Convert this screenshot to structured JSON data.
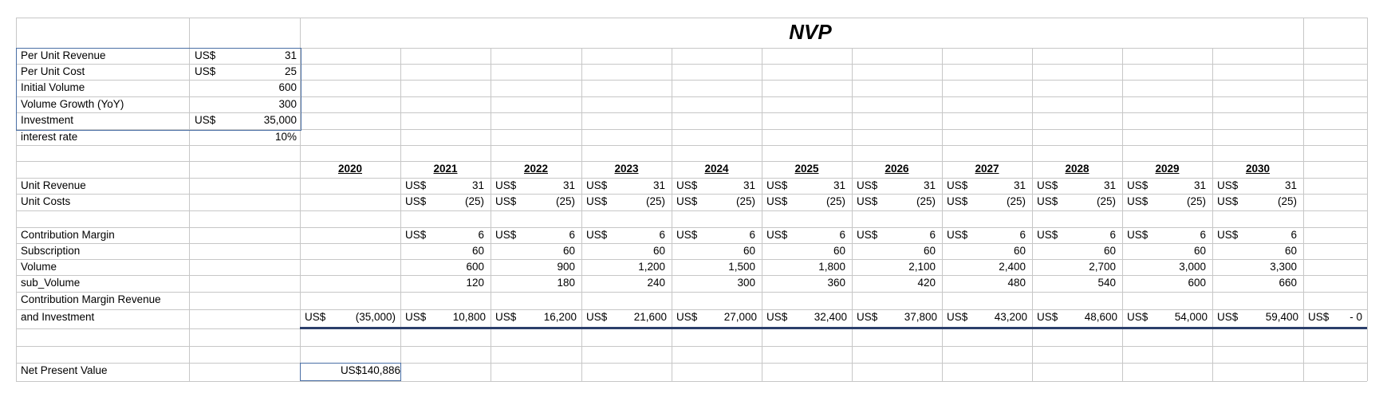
{
  "sheet": {
    "title": "NVP",
    "inputs": [
      {
        "label": "Per Unit Revenue",
        "currency": "US$",
        "value": "31"
      },
      {
        "label": "Per Unit Cost",
        "currency": "US$",
        "value": "25"
      },
      {
        "label": "Initial Volume",
        "currency": "",
        "value": "600"
      },
      {
        "label": "Volume Growth (YoY)",
        "currency": "",
        "value": "300"
      },
      {
        "label": "Investment",
        "currency": "US$",
        "value": "35,000"
      },
      {
        "label": "interest rate",
        "currency": "",
        "value": "10%"
      }
    ],
    "years": [
      "2020",
      "2021",
      "2022",
      "2023",
      "2024",
      "2025",
      "2026",
      "2027",
      "2028",
      "2029",
      "2030"
    ],
    "currency": "US$",
    "rows": {
      "unit_revenue": {
        "label": "Unit Revenue",
        "values": [
          "31",
          "31",
          "31",
          "31",
          "31",
          "31",
          "31",
          "31",
          "31",
          "31"
        ]
      },
      "unit_costs": {
        "label": "Unit Costs",
        "values": [
          "(25)",
          "(25)",
          "(25)",
          "(25)",
          "(25)",
          "(25)",
          "(25)",
          "(25)",
          "(25)",
          "(25)"
        ]
      },
      "contribution_margin": {
        "label": "Contribution Margin",
        "values": [
          "6",
          "6",
          "6",
          "6",
          "6",
          "6",
          "6",
          "6",
          "6",
          "6"
        ]
      },
      "subscription": {
        "label": "Subscription",
        "values": [
          "60",
          "60",
          "60",
          "60",
          "60",
          "60",
          "60",
          "60",
          "60",
          "60"
        ]
      },
      "volume": {
        "label": "Volume",
        "values": [
          "600",
          "900",
          "1,200",
          "1,500",
          "1,800",
          "2,100",
          "2,400",
          "2,700",
          "3,000",
          "3,300"
        ]
      },
      "sub_volume": {
        "label": "sub_Volume",
        "values": [
          "120",
          "180",
          "240",
          "300",
          "360",
          "420",
          "480",
          "540",
          "600",
          "660"
        ]
      },
      "cmr_label_1": "Contribution Margin Revenue",
      "cmr_label_2": "and Investment",
      "cmr_values": [
        "(35,000)",
        "10,800",
        "16,200",
        "21,600",
        "27,000",
        "32,400",
        "37,800",
        "43,200",
        "48,600",
        "54,000",
        "59,400",
        "- 0"
      ]
    },
    "npv": {
      "label": "Net Present Value",
      "value": "US$140,886"
    }
  }
}
